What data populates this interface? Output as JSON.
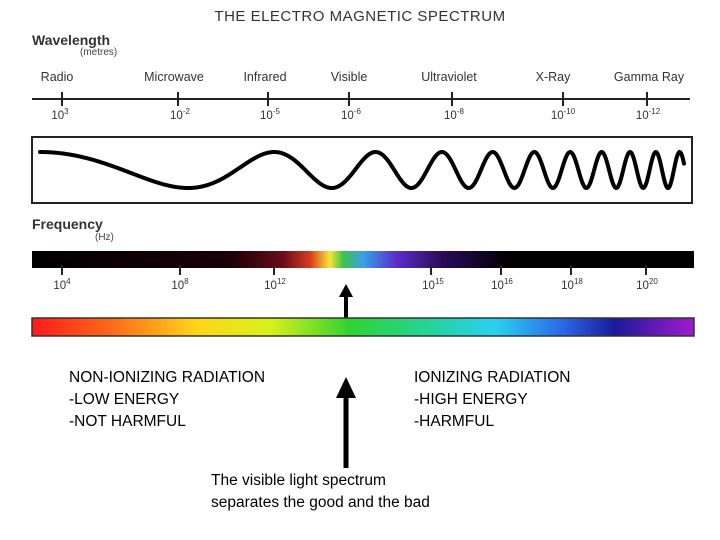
{
  "title": "THE ELECTRO MAGNETIC SPECTRUM",
  "wavelength": {
    "label": "Wavelength",
    "unit": "(metres)",
    "bands": [
      "Radio",
      "Microwave",
      "Infrared",
      "Visible",
      "Ultraviolet",
      "X-Ray",
      "Gamma Ray"
    ],
    "ticks": [
      {
        "base": "10",
        "exp": "3"
      },
      {
        "base": "10",
        "exp": "-2"
      },
      {
        "base": "10",
        "exp": "-5"
      },
      {
        "base": "10",
        "exp": "-6"
      },
      {
        "base": "10",
        "exp": "-8"
      },
      {
        "base": "10",
        "exp": "-10"
      },
      {
        "base": "10",
        "exp": "-12"
      }
    ]
  },
  "frequency": {
    "label": "Frequency",
    "unit": "(Hz)",
    "ticks": [
      {
        "base": "10",
        "exp": "4"
      },
      {
        "base": "10",
        "exp": "8"
      },
      {
        "base": "10",
        "exp": "12"
      },
      {
        "base": "10",
        "exp": "15"
      },
      {
        "base": "10",
        "exp": "16"
      },
      {
        "base": "10",
        "exp": "18"
      },
      {
        "base": "10",
        "exp": "20"
      }
    ]
  },
  "non_ionizing": {
    "heading": "NON-IONIZING RADIATION",
    "line1": "-LOW ENERGY",
    "line2": "-NOT HARMFUL"
  },
  "ionizing": {
    "heading": "IONIZING RADIATION",
    "line1": "-HIGH ENERGY",
    "line2": "-HARMFUL"
  },
  "caption": {
    "line1": "The visible light spectrum",
    "line2": "separates the good and the bad"
  },
  "colors": {
    "axis": "#222222",
    "wave": "#000000",
    "freq_bar_dark": "#000000",
    "arrow": "#000000"
  }
}
